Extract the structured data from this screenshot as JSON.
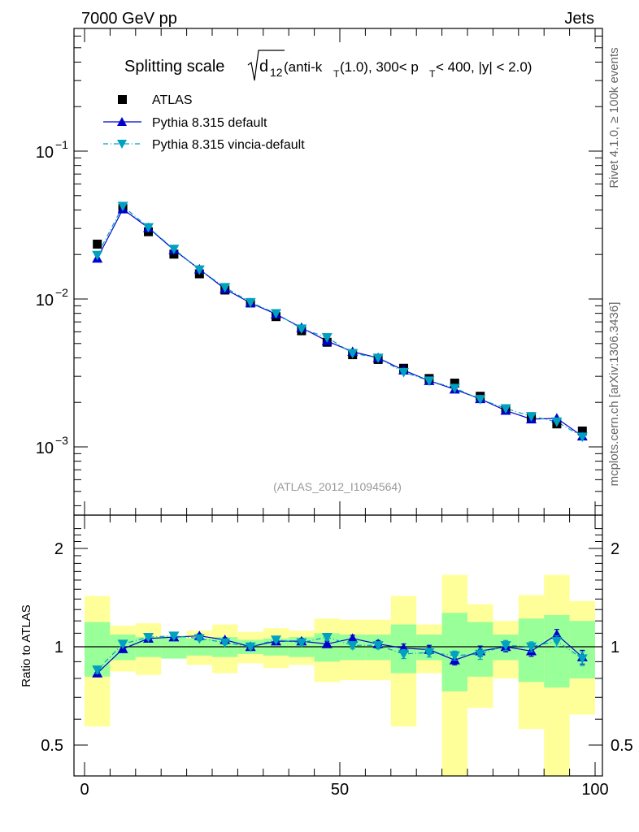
{
  "header": {
    "energy_label": "7000 GeV pp",
    "category_label": "Jets"
  },
  "side_labels": {
    "rivet": "Rivet 4.1.0, ≥ 100k events",
    "mcplots": "mcplots.cern.ch [arXiv:1306.3436]"
  },
  "chart_data": {
    "type": "scatter",
    "title_main": "Splitting scale",
    "title_sqrt_symbol": "d",
    "title_sqrt_subscript": "12",
    "title_pre": " (anti-k",
    "title_sub1": "T",
    "title_mid": "(1.0), 300< p",
    "title_sub2": "T",
    "title_end": " < 400, |y| < 2.0)",
    "watermark": "(ATLAS_2012_I1094564)",
    "xlim": [
      -2,
      101
    ],
    "xticks": [
      "0",
      "50",
      "100"
    ],
    "ylim": [
      0.00035,
      1.0
    ],
    "yscale": "log",
    "ytick_major_base": [
      "10",
      "10",
      "10"
    ],
    "ytick_major_exp": [
      "−1",
      "−2",
      "−3"
    ],
    "x": [
      2.5,
      7.5,
      12.5,
      17.5,
      22.5,
      27.5,
      32.5,
      37.5,
      42.5,
      47.5,
      52.5,
      57.5,
      62.5,
      67.5,
      72.5,
      77.5,
      82.5,
      87.5,
      92.5,
      97.5
    ],
    "series": [
      {
        "name": "ATLAS",
        "marker": "square",
        "color": "#000000",
        "values": [
          0.0235,
          0.041,
          0.0285,
          0.0201,
          0.0148,
          0.0115,
          0.0094,
          0.0076,
          0.0061,
          0.0051,
          0.0042,
          0.0039,
          0.0034,
          0.0029,
          0.0027,
          0.0022,
          0.00178,
          0.00158,
          0.00143,
          0.00128
        ]
      },
      {
        "name": "Pythia 8.315 default",
        "marker": "triangle-up",
        "color": "#0000cc",
        "line": "solid",
        "values": [
          0.0188,
          0.0405,
          0.0303,
          0.0215,
          0.0159,
          0.0117,
          0.0094,
          0.0079,
          0.0064,
          0.0052,
          0.0044,
          0.004,
          0.0033,
          0.0028,
          0.00245,
          0.00211,
          0.00176,
          0.00154,
          0.00156,
          0.00118
        ]
      },
      {
        "name": "Pythia 8.315 vincia-default",
        "marker": "triangle-down",
        "color": "#00a0c0",
        "line": "dashdot",
        "values": [
          0.0198,
          0.0425,
          0.0305,
          0.0218,
          0.0158,
          0.012,
          0.0095,
          0.008,
          0.0063,
          0.0055,
          0.0043,
          0.004,
          0.0032,
          0.0028,
          0.0025,
          0.0021,
          0.00182,
          0.00161,
          0.00148,
          0.00117
        ]
      }
    ],
    "ratio": {
      "ylabel": "Ratio to ATLAS",
      "ylim": [
        0.4,
        2.3
      ],
      "yticks": [
        "0.5",
        "1",
        "2"
      ],
      "band_edges": [
        0,
        5,
        10,
        15,
        20,
        25,
        30,
        35,
        40,
        45,
        50,
        55,
        60,
        65,
        70,
        75,
        80,
        85,
        90,
        95,
        100
      ],
      "stat_band_lo": [
        0.81,
        0.91,
        0.93,
        0.92,
        0.94,
        0.93,
        0.95,
        0.94,
        0.93,
        0.9,
        0.91,
        0.91,
        0.83,
        0.91,
        0.73,
        0.81,
        0.91,
        0.78,
        0.75,
        0.8
      ],
      "stat_band_hi": [
        1.19,
        1.09,
        1.07,
        1.08,
        1.06,
        1.07,
        1.05,
        1.06,
        1.07,
        1.1,
        1.09,
        1.09,
        1.17,
        1.09,
        1.27,
        1.19,
        1.09,
        1.22,
        1.25,
        1.2
      ],
      "total_band_lo": [
        0.57,
        0.84,
        0.82,
        0.92,
        0.88,
        0.83,
        0.89,
        0.86,
        0.88,
        0.78,
        0.79,
        0.79,
        0.57,
        0.83,
        0.4,
        0.65,
        0.8,
        0.56,
        0.4,
        0.62
      ],
      "total_band_hi": [
        1.43,
        1.16,
        1.18,
        1.08,
        1.12,
        1.17,
        1.11,
        1.14,
        1.12,
        1.22,
        1.21,
        1.21,
        1.43,
        1.17,
        1.66,
        1.35,
        1.2,
        1.44,
        1.66,
        1.38
      ],
      "series": [
        {
          "name": "Pythia 8.315 default",
          "values": [
            0.83,
            0.985,
            1.06,
            1.07,
            1.08,
            1.05,
            1.0,
            1.04,
            1.04,
            1.02,
            1.06,
            1.02,
            0.99,
            0.98,
            0.91,
            0.97,
            1.0,
            0.97,
            1.09,
            0.93
          ],
          "errors": [
            0.02,
            0.015,
            0.015,
            0.015,
            0.015,
            0.015,
            0.015,
            0.015,
            0.02,
            0.02,
            0.025,
            0.025,
            0.03,
            0.03,
            0.03,
            0.035,
            0.035,
            0.035,
            0.04,
            0.045
          ]
        },
        {
          "name": "Pythia 8.315 vincia-default",
          "values": [
            0.85,
            1.02,
            1.07,
            1.08,
            1.06,
            1.03,
            1.0,
            1.05,
            1.03,
            1.07,
            1.01,
            1.01,
            0.95,
            0.96,
            0.94,
            0.95,
            1.01,
            1.0,
            1.04,
            0.92
          ],
          "errors": [
            0.02,
            0.015,
            0.015,
            0.015,
            0.015,
            0.015,
            0.015,
            0.015,
            0.02,
            0.02,
            0.025,
            0.025,
            0.03,
            0.03,
            0.03,
            0.035,
            0.035,
            0.035,
            0.04,
            0.045
          ]
        }
      ]
    },
    "band_colors": {
      "total": "#ffff99",
      "stat": "#99ff99"
    }
  }
}
